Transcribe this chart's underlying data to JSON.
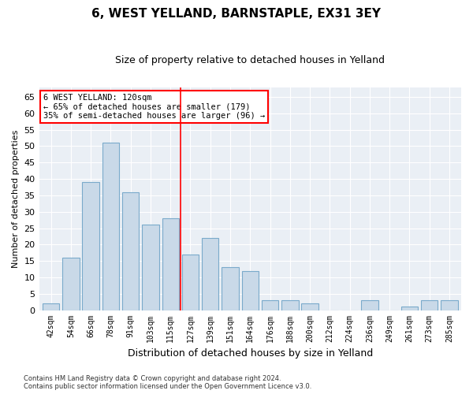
{
  "title": "6, WEST YELLAND, BARNSTAPLE, EX31 3EY",
  "subtitle": "Size of property relative to detached houses in Yelland",
  "xlabel": "Distribution of detached houses by size in Yelland",
  "ylabel": "Number of detached properties",
  "categories": [
    "42sqm",
    "54sqm",
    "66sqm",
    "78sqm",
    "91sqm",
    "103sqm",
    "115sqm",
    "127sqm",
    "139sqm",
    "151sqm",
    "164sqm",
    "176sqm",
    "188sqm",
    "200sqm",
    "212sqm",
    "224sqm",
    "236sqm",
    "249sqm",
    "261sqm",
    "273sqm",
    "285sqm"
  ],
  "values": [
    2,
    16,
    39,
    51,
    36,
    26,
    28,
    17,
    22,
    13,
    12,
    3,
    3,
    2,
    0,
    0,
    3,
    0,
    1,
    3,
    3
  ],
  "bar_color": "#c9d9e8",
  "bar_edge_color": "#7aaacb",
  "annotation_title": "6 WEST YELLAND: 120sqm",
  "annotation_line1": "← 65% of detached houses are smaller (179)",
  "annotation_line2": "35% of semi-detached houses are larger (96) →",
  "ylim": [
    0,
    68
  ],
  "yticks": [
    0,
    5,
    10,
    15,
    20,
    25,
    30,
    35,
    40,
    45,
    50,
    55,
    60,
    65
  ],
  "redline_x": 6.5,
  "footer1": "Contains HM Land Registry data © Crown copyright and database right 2024.",
  "footer2": "Contains public sector information licensed under the Open Government Licence v3.0.",
  "background_color": "#eaeff5"
}
